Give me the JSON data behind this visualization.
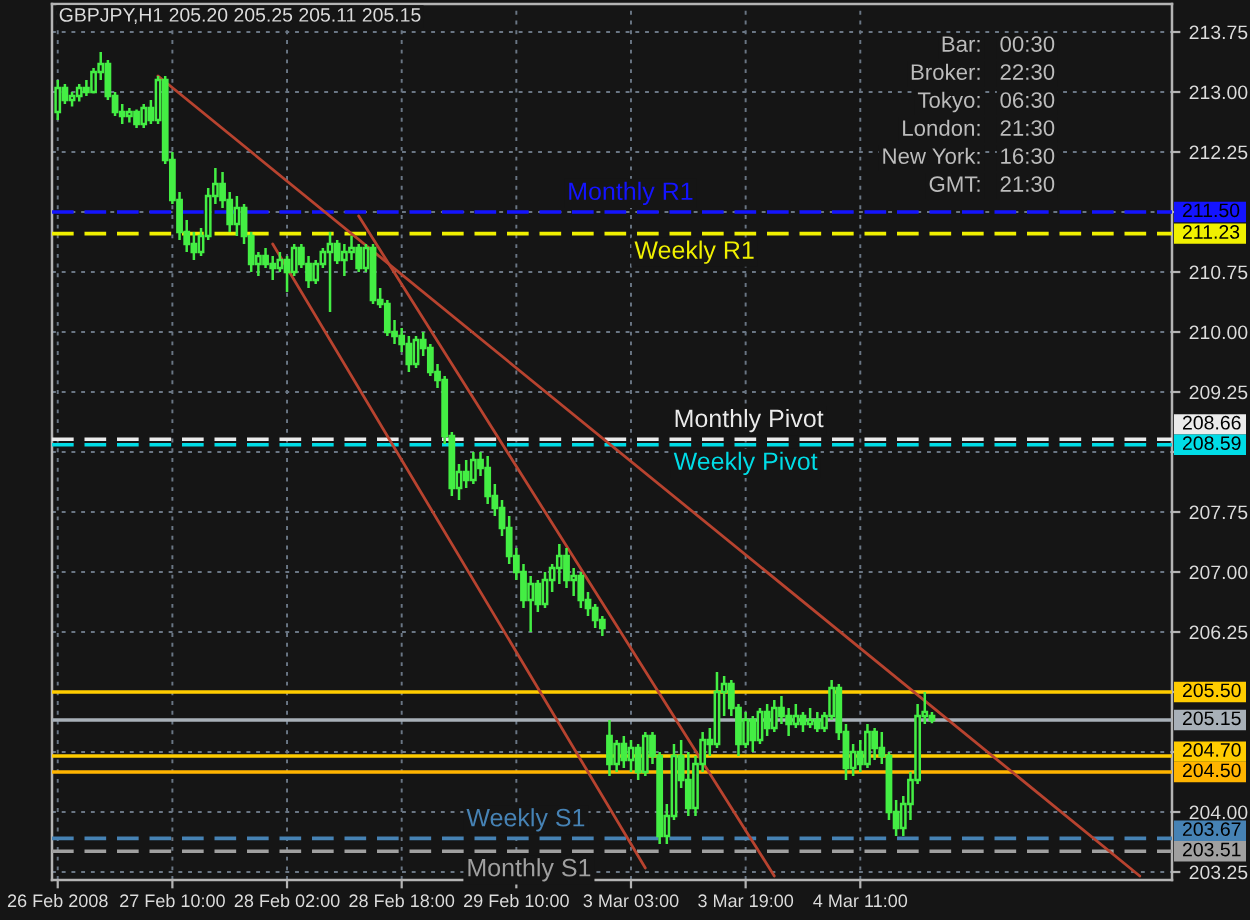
{
  "chart_data": {
    "type": "candlestick",
    "title": "GBPJPY,H1 205.20 205.25 205.11 205.15",
    "color": "#44ee44",
    "categories": [
      "26 Feb 2008",
      null,
      null,
      null,
      null,
      null,
      null,
      null,
      null,
      null,
      null,
      null,
      null,
      null,
      null,
      null,
      "27 Feb 10:00",
      null,
      null,
      null,
      null,
      null,
      null,
      null,
      null,
      null,
      null,
      null,
      null,
      null,
      null,
      null,
      "28 Feb 02:00",
      null,
      null,
      null,
      null,
      null,
      null,
      null,
      null,
      null,
      null,
      null,
      null,
      null,
      null,
      null,
      "28 Feb 18:00",
      null,
      null,
      null,
      null,
      null,
      null,
      null,
      null,
      null,
      null,
      null,
      null,
      null,
      null,
      null,
      "29 Feb 10:00",
      null,
      null,
      null,
      null,
      null,
      null,
      null,
      null,
      null,
      null,
      null,
      null,
      null,
      null,
      null,
      "3 Mar 03:00",
      null,
      null,
      null,
      null,
      null,
      null,
      null,
      null,
      null,
      null,
      null,
      null,
      null,
      null,
      null,
      "3 Mar 19:00",
      null,
      null,
      null,
      null,
      null,
      null,
      null,
      null,
      null,
      null,
      null,
      null,
      null,
      null,
      null,
      "4 Mar 11:00",
      null,
      null,
      null,
      null,
      null,
      null,
      null,
      null,
      null,
      null,
      null,
      null,
      null,
      null,
      null,
      null,
      null,
      null,
      null,
      null,
      null,
      null,
      null,
      null,
      null,
      null,
      null,
      null,
      null,
      null,
      null,
      null,
      null,
      null,
      null,
      null,
      null,
      null,
      null,
      null,
      null,
      null,
      null
    ],
    "ohlc": [
      [
        212.75,
        213.15,
        212.65,
        213.05
      ],
      [
        213.05,
        213.1,
        212.85,
        212.9
      ],
      [
        212.9,
        213.0,
        212.82,
        212.95
      ],
      [
        212.95,
        213.1,
        212.88,
        213.05
      ],
      [
        213.05,
        213.15,
        212.95,
        213.0
      ],
      [
        213.0,
        213.3,
        212.98,
        213.25
      ],
      [
        213.25,
        213.5,
        213.15,
        213.35
      ],
      [
        213.35,
        213.4,
        212.9,
        212.95
      ],
      [
        212.95,
        213.0,
        212.7,
        212.75
      ],
      [
        212.75,
        212.85,
        212.6,
        212.7
      ],
      [
        212.7,
        212.8,
        212.62,
        212.75
      ],
      [
        212.75,
        212.78,
        212.55,
        212.6
      ],
      [
        212.6,
        212.85,
        212.55,
        212.8
      ],
      [
        212.8,
        212.9,
        212.6,
        212.65
      ],
      [
        212.65,
        213.2,
        212.6,
        213.15
      ],
      [
        213.15,
        213.2,
        212.1,
        212.15
      ],
      [
        212.15,
        212.25,
        211.6,
        211.65
      ],
      [
        211.65,
        211.75,
        211.15,
        211.25
      ],
      [
        211.25,
        211.4,
        211.0,
        211.1
      ],
      [
        211.1,
        211.25,
        210.9,
        211.0
      ],
      [
        211.0,
        211.3,
        210.95,
        211.2
      ],
      [
        211.2,
        211.8,
        211.15,
        211.7
      ],
      [
        211.7,
        212.05,
        211.6,
        211.85
      ],
      [
        211.85,
        212.0,
        211.55,
        211.65
      ],
      [
        211.65,
        211.75,
        211.25,
        211.35
      ],
      [
        211.35,
        211.7,
        211.2,
        211.55
      ],
      [
        211.55,
        211.6,
        211.1,
        211.2
      ],
      [
        211.2,
        211.25,
        210.75,
        210.85
      ],
      [
        210.85,
        211.0,
        210.7,
        210.95
      ],
      [
        210.95,
        211.05,
        210.8,
        210.85
      ],
      [
        210.85,
        210.95,
        210.65,
        210.8
      ],
      [
        210.8,
        211.0,
        210.75,
        210.9
      ],
      [
        210.9,
        210.95,
        210.5,
        210.75
      ],
      [
        210.75,
        211.1,
        210.7,
        211.05
      ],
      [
        211.05,
        211.1,
        210.8,
        210.85
      ],
      [
        210.85,
        210.95,
        210.55,
        210.65
      ],
      [
        210.65,
        210.9,
        210.6,
        210.85
      ],
      [
        210.85,
        211.05,
        210.8,
        211.0
      ],
      [
        211.0,
        211.25,
        210.25,
        211.1
      ],
      [
        211.1,
        211.15,
        210.85,
        210.9
      ],
      [
        210.9,
        211.1,
        210.7,
        211.0
      ],
      [
        211.0,
        211.2,
        210.9,
        211.05
      ],
      [
        211.05,
        211.1,
        210.75,
        210.8
      ],
      [
        210.8,
        211.1,
        210.75,
        211.05
      ],
      [
        211.05,
        211.1,
        210.35,
        210.4
      ],
      [
        210.4,
        210.55,
        210.3,
        210.35
      ],
      [
        210.35,
        210.4,
        209.95,
        210.0
      ],
      [
        210.0,
        210.15,
        209.85,
        209.95
      ],
      [
        209.95,
        210.05,
        209.75,
        209.85
      ],
      [
        209.85,
        209.95,
        209.5,
        209.6
      ],
      [
        209.6,
        209.95,
        209.55,
        209.9
      ],
      [
        209.9,
        210.0,
        209.7,
        209.8
      ],
      [
        209.8,
        209.85,
        209.45,
        209.5
      ],
      [
        209.5,
        209.6,
        209.3,
        209.4
      ],
      [
        209.4,
        209.45,
        208.6,
        208.7
      ],
      [
        208.7,
        208.75,
        207.95,
        208.05
      ],
      [
        208.05,
        208.35,
        207.9,
        208.25
      ],
      [
        208.25,
        208.4,
        208.05,
        208.15
      ],
      [
        208.15,
        208.5,
        208.1,
        208.4
      ],
      [
        208.4,
        208.5,
        208.2,
        208.3
      ],
      [
        208.3,
        208.45,
        207.85,
        207.95
      ],
      [
        207.95,
        208.1,
        207.7,
        207.8
      ],
      [
        207.8,
        207.9,
        207.45,
        207.55
      ],
      [
        207.55,
        207.7,
        207.1,
        207.2
      ],
      [
        207.2,
        207.3,
        206.9,
        207.0
      ],
      [
        207.0,
        207.1,
        206.55,
        206.65
      ],
      [
        206.65,
        206.95,
        206.25,
        206.85
      ],
      [
        206.85,
        206.9,
        206.5,
        206.6
      ],
      [
        206.6,
        207.0,
        206.55,
        206.9
      ],
      [
        206.9,
        207.1,
        206.75,
        207.05
      ],
      [
        207.05,
        207.35,
        206.85,
        207.2
      ],
      [
        207.2,
        207.3,
        206.8,
        206.9
      ],
      [
        206.9,
        207.05,
        206.7,
        206.95
      ],
      [
        206.95,
        207.0,
        206.55,
        206.65
      ],
      [
        206.65,
        206.75,
        206.45,
        206.55
      ],
      [
        206.55,
        206.6,
        206.3,
        206.4
      ],
      [
        206.4,
        206.45,
        206.2,
        206.3
      ],
      [
        204.95,
        205.15,
        204.45,
        204.6
      ],
      [
        204.6,
        204.9,
        204.5,
        204.85
      ],
      [
        204.85,
        204.95,
        204.55,
        204.65
      ],
      [
        204.65,
        204.9,
        204.5,
        204.8
      ],
      [
        204.8,
        204.85,
        204.4,
        204.5
      ],
      [
        204.5,
        205.0,
        204.45,
        204.95
      ],
      [
        204.95,
        205.0,
        204.6,
        204.7
      ],
      [
        204.7,
        204.75,
        203.6,
        203.7
      ],
      [
        203.7,
        204.1,
        203.6,
        203.95
      ],
      [
        203.95,
        204.85,
        203.9,
        204.7
      ],
      [
        204.7,
        204.9,
        204.3,
        204.4
      ],
      [
        204.4,
        204.75,
        203.95,
        204.05
      ],
      [
        204.05,
        204.7,
        203.95,
        204.6
      ],
      [
        204.6,
        205.0,
        204.5,
        204.9
      ],
      [
        204.9,
        205.05,
        204.7,
        204.85
      ],
      [
        204.85,
        205.75,
        204.8,
        205.5
      ],
      [
        205.5,
        205.7,
        205.2,
        205.6
      ],
      [
        205.6,
        205.65,
        205.2,
        205.3
      ],
      [
        205.3,
        205.35,
        204.7,
        204.85
      ],
      [
        204.85,
        205.25,
        204.8,
        205.15
      ],
      [
        205.15,
        205.2,
        204.75,
        204.9
      ],
      [
        204.9,
        205.3,
        204.85,
        205.25
      ],
      [
        205.25,
        205.35,
        204.95,
        205.05
      ],
      [
        205.05,
        205.4,
        205.0,
        205.3
      ],
      [
        205.3,
        205.45,
        205.1,
        205.2
      ],
      [
        205.2,
        205.3,
        204.95,
        205.1
      ],
      [
        205.1,
        205.35,
        205.05,
        205.2
      ],
      [
        205.2,
        205.25,
        205.0,
        205.1
      ],
      [
        205.1,
        205.3,
        205.05,
        205.15
      ],
      [
        205.15,
        205.25,
        205.0,
        205.05
      ],
      [
        205.05,
        205.25,
        205.0,
        205.2
      ],
      [
        205.2,
        205.65,
        205.15,
        205.55
      ],
      [
        205.55,
        205.6,
        204.9,
        205.0
      ],
      [
        205.0,
        205.1,
        204.4,
        204.55
      ],
      [
        204.55,
        204.85,
        204.45,
        204.75
      ],
      [
        204.75,
        204.9,
        204.5,
        204.6
      ],
      [
        204.6,
        205.1,
        204.55,
        205.0
      ],
      [
        205.0,
        205.05,
        204.65,
        204.8
      ],
      [
        204.8,
        205.0,
        204.6,
        204.7
      ],
      [
        204.7,
        204.75,
        203.9,
        204.0
      ],
      [
        204.0,
        204.15,
        203.7,
        203.8
      ],
      [
        203.8,
        204.2,
        203.7,
        204.1
      ],
      [
        204.1,
        204.5,
        203.9,
        204.4
      ],
      [
        204.4,
        205.35,
        204.35,
        205.2
      ],
      [
        205.2,
        205.5,
        205.1,
        205.25
      ],
      [
        205.2,
        205.25,
        205.11,
        205.15
      ],
      null,
      null,
      null,
      null,
      null,
      null,
      null,
      null,
      null,
      null,
      null,
      null,
      null,
      null,
      null,
      null,
      null,
      null,
      null,
      null,
      null,
      null,
      null,
      null,
      null,
      null,
      null,
      null,
      null,
      null,
      null,
      null,
      null
    ],
    "series": [
      {
        "type": "line",
        "color": "#b8432f",
        "values": [
          null,
          null,
          null,
          null,
          null,
          null,
          null,
          null,
          null,
          null,
          null,
          null,
          null,
          null,
          213.2,
          null,
          null,
          null,
          null,
          null,
          null,
          null,
          null,
          null,
          null,
          null,
          null,
          null,
          null,
          null,
          null,
          null,
          null,
          null,
          null,
          null,
          null,
          null,
          null,
          null,
          null,
          null,
          null,
          null,
          null,
          null,
          null,
          null,
          null,
          null,
          null,
          null,
          null,
          null,
          null,
          null,
          null,
          null,
          null,
          null,
          null,
          null,
          null,
          null,
          null,
          null,
          null,
          null,
          null,
          null,
          null,
          null,
          null,
          null,
          null,
          null,
          null,
          null,
          null,
          null,
          null,
          null,
          null,
          null,
          null,
          null,
          null,
          null,
          null,
          null,
          null,
          null,
          null,
          null,
          null,
          null,
          null,
          null,
          null,
          null,
          null,
          null,
          null,
          null,
          null,
          null,
          null,
          null,
          null,
          null,
          null,
          null,
          null,
          null,
          null,
          null,
          null,
          null,
          null,
          null,
          null,
          null,
          null,
          null,
          null,
          null,
          null,
          null,
          null,
          null,
          null,
          null,
          null,
          null,
          null,
          null,
          null,
          null,
          null,
          null,
          null,
          null,
          null,
          null,
          null,
          null,
          null,
          null,
          null,
          null,
          null,
          203.2,
          null,
          null,
          null,
          null
        ]
      },
      {
        "type": "line",
        "color": "#b8432f",
        "values": [
          null,
          null,
          null,
          null,
          null,
          null,
          null,
          null,
          null,
          null,
          null,
          null,
          null,
          null,
          null,
          null,
          null,
          null,
          null,
          null,
          null,
          null,
          null,
          null,
          null,
          null,
          null,
          null,
          null,
          null,
          211.1,
          null,
          null,
          null,
          null,
          null,
          null,
          null,
          null,
          null,
          null,
          null,
          null,
          null,
          null,
          null,
          null,
          null,
          null,
          null,
          null,
          null,
          null,
          null,
          null,
          null,
          null,
          null,
          null,
          null,
          null,
          null,
          null,
          null,
          null,
          null,
          null,
          null,
          null,
          null,
          null,
          null,
          null,
          null,
          null,
          null,
          null,
          null,
          null,
          null,
          null,
          null,
          203.3,
          null,
          null,
          null,
          null,
          null,
          null,
          null,
          null,
          null,
          null,
          null,
          null,
          null,
          null,
          null,
          null,
          null,
          null,
          null,
          null,
          null,
          null,
          null,
          null,
          null,
          null,
          null,
          null,
          null,
          null,
          null,
          null,
          null,
          null,
          null,
          null,
          null,
          null,
          null,
          null,
          null,
          null,
          null,
          null,
          null,
          null,
          null,
          null,
          null,
          null,
          null,
          null,
          null,
          null,
          null,
          null,
          null,
          null,
          null,
          null,
          null,
          null,
          null,
          null,
          null,
          null,
          null,
          null,
          null,
          null,
          null,
          null,
          null
        ]
      },
      {
        "type": "line",
        "color": "#b8432f",
        "values": [
          null,
          null,
          null,
          null,
          null,
          null,
          null,
          null,
          null,
          null,
          null,
          null,
          null,
          null,
          null,
          null,
          null,
          null,
          null,
          null,
          null,
          null,
          null,
          null,
          null,
          null,
          null,
          null,
          null,
          null,
          null,
          null,
          null,
          null,
          null,
          null,
          null,
          null,
          null,
          null,
          null,
          null,
          211.45,
          null,
          null,
          null,
          null,
          null,
          null,
          null,
          null,
          null,
          null,
          null,
          null,
          null,
          null,
          null,
          null,
          null,
          null,
          null,
          null,
          null,
          null,
          null,
          null,
          null,
          null,
          null,
          null,
          null,
          null,
          null,
          null,
          null,
          null,
          null,
          null,
          null,
          null,
          null,
          null,
          null,
          null,
          null,
          null,
          null,
          null,
          null,
          null,
          null,
          null,
          null,
          null,
          null,
          null,
          null,
          null,
          null,
          203.2,
          null,
          null,
          null,
          null,
          null,
          null,
          null,
          null,
          null,
          null,
          null,
          null,
          null,
          null,
          null,
          null,
          null,
          null,
          null,
          null,
          null,
          null,
          null,
          null,
          null,
          null,
          null,
          null,
          null,
          null,
          null,
          null,
          null,
          null,
          null,
          null,
          null,
          null,
          null,
          null,
          null,
          null,
          null,
          null,
          null,
          null,
          null,
          null,
          null,
          null,
          null,
          null,
          null,
          null,
          null
        ]
      }
    ],
    "ylim": [
      203.15,
      214.1
    ],
    "yticks": [
      {
        "value": 203.25,
        "label": "203.25"
      },
      {
        "value": 204,
        "label": "204.00"
      },
      {
        "value": 204.75,
        "label": null
      },
      {
        "value": 205.5,
        "label": null
      },
      {
        "value": 206.25,
        "label": "206.25"
      },
      {
        "value": 207,
        "label": "207.00"
      },
      {
        "value": 207.75,
        "label": "207.75"
      },
      {
        "value": 208.5,
        "label": null
      },
      {
        "value": 209.25,
        "label": "209.25"
      },
      {
        "value": 210,
        "label": "210.00"
      },
      {
        "value": 210.75,
        "label": "210.75"
      },
      {
        "value": 211.5,
        "label": null
      },
      {
        "value": 212.25,
        "label": "212.25"
      },
      {
        "value": 213,
        "label": "213.00"
      },
      {
        "value": 213.75,
        "label": "213.75"
      }
    ],
    "ref_lines": [
      {
        "axis": "y",
        "value": 211.5,
        "label": "Monthly R1",
        "color": "#1414ff",
        "line_style": "dashed"
      },
      {
        "axis": "y",
        "value": 211.23,
        "label": "Weekly R1",
        "color": "#f0f000",
        "line_style": "dashed"
      },
      {
        "axis": "y",
        "value": 208.66,
        "label": "Monthly Pivot",
        "color": "#ebebeb",
        "line_style": "dashed"
      },
      {
        "axis": "y",
        "value": 208.59,
        "label": "Weekly Pivot",
        "color": "#00dce6",
        "line_style": "dashed"
      },
      {
        "axis": "y",
        "value": 205.5,
        "color": "#ffcc00"
      },
      {
        "axis": "y",
        "value": 205.15,
        "color": "#a8b0b8"
      },
      {
        "axis": "y",
        "value": 204.7,
        "color": "#ffcc00"
      },
      {
        "axis": "y",
        "value": 204.5,
        "color": "#ffb400"
      },
      {
        "axis": "y",
        "value": 203.67,
        "label": "Weekly S1",
        "color": "#4682b4",
        "line_style": "dashed"
      },
      {
        "axis": "y",
        "value": 203.51,
        "label": "Monthly S1",
        "color": "#a0a0a0",
        "line_style": "dashed"
      }
    ],
    "annotations": [
      "Bar:",
      "00:30",
      "Broker:",
      "22:30",
      "Tokyo:",
      "06:30",
      "London:",
      "21:30",
      "New York:",
      "16:30",
      "GMT:",
      "21:30",
      "211.50",
      "211.23",
      "208.66",
      "208.59",
      "205.50",
      "205.15",
      "204.70",
      "204.50",
      "203.67",
      "203.51"
    ],
    "grid": true
  }
}
